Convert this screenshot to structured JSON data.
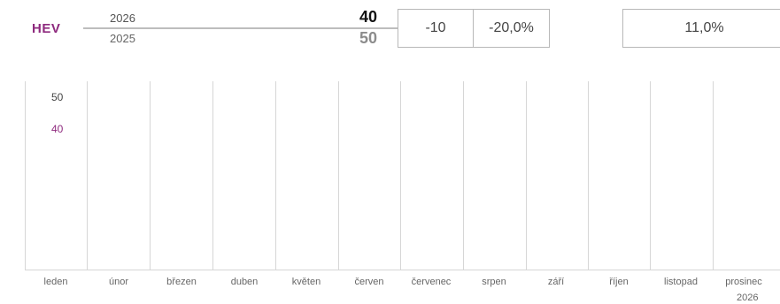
{
  "header": {
    "category": "HEV",
    "year_current": "2026",
    "year_previous": "2025",
    "value_current": "40",
    "value_previous": "50",
    "difference": "-10",
    "change_percent": "-20,0%",
    "share_percent": "11,0%"
  },
  "chart": {
    "y_labels": {
      "previous": "50",
      "current": "40"
    },
    "months": [
      "leden",
      "únor",
      "březen",
      "duben",
      "květen",
      "červen",
      "červenec",
      "srpen",
      "září",
      "říjen",
      "listopad",
      "prosinec"
    ],
    "year_label": "2026",
    "colors": {
      "current": "#8e2a7e",
      "previous": "#444444"
    }
  }
}
